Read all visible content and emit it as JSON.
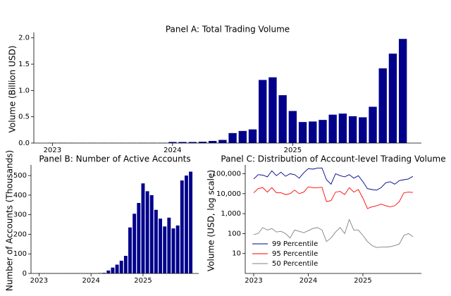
{
  "chart_data": [
    {
      "type": "bar",
      "title": "Panel A: Total Trading Volume",
      "y_label": "Volume (Billion USD)",
      "categories": [
        "2023",
        null,
        null,
        null,
        null,
        null,
        null,
        null,
        null,
        null,
        null,
        null,
        "2024",
        null,
        null,
        null,
        null,
        null,
        null,
        null,
        null,
        null,
        null,
        null,
        "2025",
        null,
        null,
        null,
        null,
        null,
        null,
        null,
        null,
        null,
        null,
        null
      ],
      "values": [
        0.004,
        0.004,
        0.003,
        0.003,
        0.003,
        0.003,
        0.003,
        0.003,
        0.003,
        0.004,
        0.004,
        0.005,
        0.02,
        0.02,
        0.02,
        0.025,
        0.04,
        0.06,
        0.19,
        0.23,
        0.26,
        1.2,
        1.25,
        0.91,
        0.61,
        0.4,
        0.41,
        0.44,
        0.54,
        0.56,
        0.51,
        0.49,
        0.69,
        1.42,
        1.7,
        1.98
      ],
      "color": "#00008b",
      "ylim": [
        0,
        2.05
      ],
      "yticks": [
        {
          "value": 0,
          "label": "0.0"
        },
        0.5,
        {
          "value": 1,
          "label": "1.0"
        },
        1.5,
        {
          "value": 2,
          "label": "2.0"
        }
      ]
    },
    {
      "type": "bar",
      "title": "Panel B: Number of Active Accounts",
      "y_label": "Number of Accounts (Thousands)",
      "categories": [
        "2023",
        null,
        null,
        null,
        null,
        null,
        null,
        null,
        null,
        null,
        null,
        null,
        "2024",
        null,
        null,
        null,
        null,
        null,
        null,
        null,
        null,
        null,
        null,
        null,
        "2025",
        null,
        null,
        null,
        null,
        null,
        null,
        null,
        null,
        null,
        null,
        null
      ],
      "values": [
        1,
        1,
        1,
        1,
        1,
        1,
        1,
        1,
        1,
        1,
        1,
        1,
        1,
        1,
        2,
        3,
        15,
        30,
        45,
        65,
        90,
        235,
        305,
        360,
        460,
        420,
        400,
        325,
        280,
        240,
        285,
        230,
        245,
        475,
        500,
        520
      ],
      "color": "#00008b",
      "ylim": [
        0,
        540
      ],
      "yticks": [
        0,
        100,
        200,
        300,
        400,
        500
      ]
    },
    {
      "type": "line",
      "title": "Panel C: Distribution of Account-level Trading Volume",
      "y_label": "Volume (USD, log scale)",
      "categories": [
        "2023",
        null,
        null,
        null,
        null,
        null,
        null,
        null,
        null,
        null,
        null,
        null,
        "2024",
        null,
        null,
        null,
        null,
        null,
        null,
        null,
        null,
        null,
        null,
        null,
        "2025",
        null,
        null,
        null,
        null,
        null,
        null,
        null,
        null,
        null,
        null,
        null
      ],
      "log_y": true,
      "ylim": [
        1,
        200000
      ],
      "yticks": [
        10,
        100,
        {
          "value": 1000,
          "label": "1,000"
        },
        {
          "value": 10000,
          "label": "10,000"
        },
        {
          "value": 100000,
          "label": "100,000"
        }
      ],
      "legend": "lower left",
      "series": [
        {
          "name": "99 Percentile",
          "color": "#00008b",
          "values": [
            55000,
            90000,
            85000,
            70000,
            140000,
            80000,
            120000,
            75000,
            100000,
            90000,
            60000,
            110000,
            180000,
            170000,
            190000,
            195000,
            50000,
            30000,
            100000,
            80000,
            70000,
            90000,
            60000,
            80000,
            40000,
            18000,
            16000,
            15000,
            20000,
            35000,
            40000,
            30000,
            45000,
            50000,
            55000,
            75000
          ]
        },
        {
          "name": "95 Percentile",
          "color": "#ff0000",
          "values": [
            11000,
            18000,
            20000,
            12000,
            20000,
            11000,
            11000,
            9000,
            10000,
            15000,
            10000,
            12000,
            22000,
            20000,
            20000,
            21000,
            4000,
            4500,
            12000,
            13000,
            9000,
            20000,
            12000,
            16000,
            6000,
            1800,
            2200,
            2500,
            3000,
            2500,
            2200,
            2500,
            4000,
            11000,
            12000,
            11500
          ]
        },
        {
          "name": "50 Percentile",
          "color": "#808080",
          "values": [
            90,
            100,
            200,
            150,
            180,
            120,
            130,
            100,
            60,
            150,
            130,
            110,
            140,
            180,
            200,
            150,
            40,
            60,
            120,
            200,
            100,
            500,
            150,
            150,
            80,
            40,
            25,
            20,
            21,
            21,
            22,
            25,
            30,
            80,
            100,
            70
          ]
        }
      ]
    }
  ]
}
